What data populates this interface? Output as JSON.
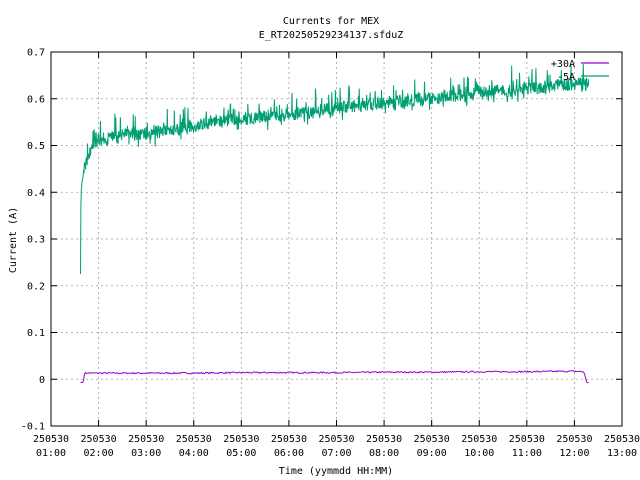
{
  "chart_data": {
    "type": "line",
    "title": "Currents for MEX",
    "subtitle": "E_RT20250529234137.sfduZ",
    "xlabel": "Time (yymmdd HH:MM)",
    "ylabel": "Current (A)",
    "xlim": [
      1,
      13
    ],
    "ylim": [
      -0.1,
      0.7
    ],
    "grid": true,
    "legend": "top-right",
    "x_ticks": [
      {
        "value": 1,
        "date": "250530",
        "time": "01:00"
      },
      {
        "value": 2,
        "date": "250530",
        "time": "02:00"
      },
      {
        "value": 3,
        "date": "250530",
        "time": "03:00"
      },
      {
        "value": 4,
        "date": "250530",
        "time": "04:00"
      },
      {
        "value": 5,
        "date": "250530",
        "time": "05:00"
      },
      {
        "value": 6,
        "date": "250530",
        "time": "06:00"
      },
      {
        "value": 7,
        "date": "250530",
        "time": "07:00"
      },
      {
        "value": 8,
        "date": "250530",
        "time": "08:00"
      },
      {
        "value": 9,
        "date": "250530",
        "time": "09:00"
      },
      {
        "value": 10,
        "date": "250530",
        "time": "10:00"
      },
      {
        "value": 11,
        "date": "250530",
        "time": "11:00"
      },
      {
        "value": 12,
        "date": "250530",
        "time": "12:00"
      },
      {
        "value": 13,
        "date": "250530",
        "time": "13:00"
      }
    ],
    "y_ticks": [
      "-0.1",
      "0",
      "0.1",
      "0.2",
      "0.3",
      "0.4",
      "0.5",
      "0.6",
      "0.7"
    ],
    "y_tick_values": [
      -0.1,
      0,
      0.1,
      0.2,
      0.3,
      0.4,
      0.5,
      0.6,
      0.7
    ],
    "series": [
      {
        "name": "+30A",
        "color": "#9400d3",
        "x": [
          1.62,
          1.68,
          1.7,
          2.0,
          3.0,
          4.0,
          5.0,
          6.0,
          7.0,
          8.0,
          9.0,
          10.0,
          11.0,
          12.0,
          12.2,
          12.26,
          12.3
        ],
        "y": [
          -0.007,
          -0.007,
          0.013,
          0.013,
          0.013,
          0.013,
          0.014,
          0.014,
          0.014,
          0.015,
          0.015,
          0.016,
          0.016,
          0.017,
          0.016,
          -0.007,
          -0.007
        ]
      },
      {
        "name": "-5A",
        "color": "#009e73",
        "x": [
          1.62,
          1.63,
          1.65,
          1.7,
          1.8,
          1.9,
          2.0,
          2.25,
          2.5,
          3.0,
          3.5,
          4.0,
          4.5,
          5.0,
          5.5,
          6.0,
          6.5,
          7.0,
          7.5,
          8.0,
          8.5,
          9.0,
          9.5,
          10.0,
          10.5,
          11.0,
          11.5,
          12.0,
          12.3
        ],
        "y": [
          0.225,
          0.4,
          0.42,
          0.45,
          0.48,
          0.5,
          0.51,
          0.515,
          0.52,
          0.525,
          0.53,
          0.54,
          0.55,
          0.555,
          0.56,
          0.565,
          0.57,
          0.58,
          0.585,
          0.59,
          0.595,
          0.6,
          0.605,
          0.61,
          0.615,
          0.62,
          0.625,
          0.63,
          0.63
        ]
      }
    ]
  }
}
